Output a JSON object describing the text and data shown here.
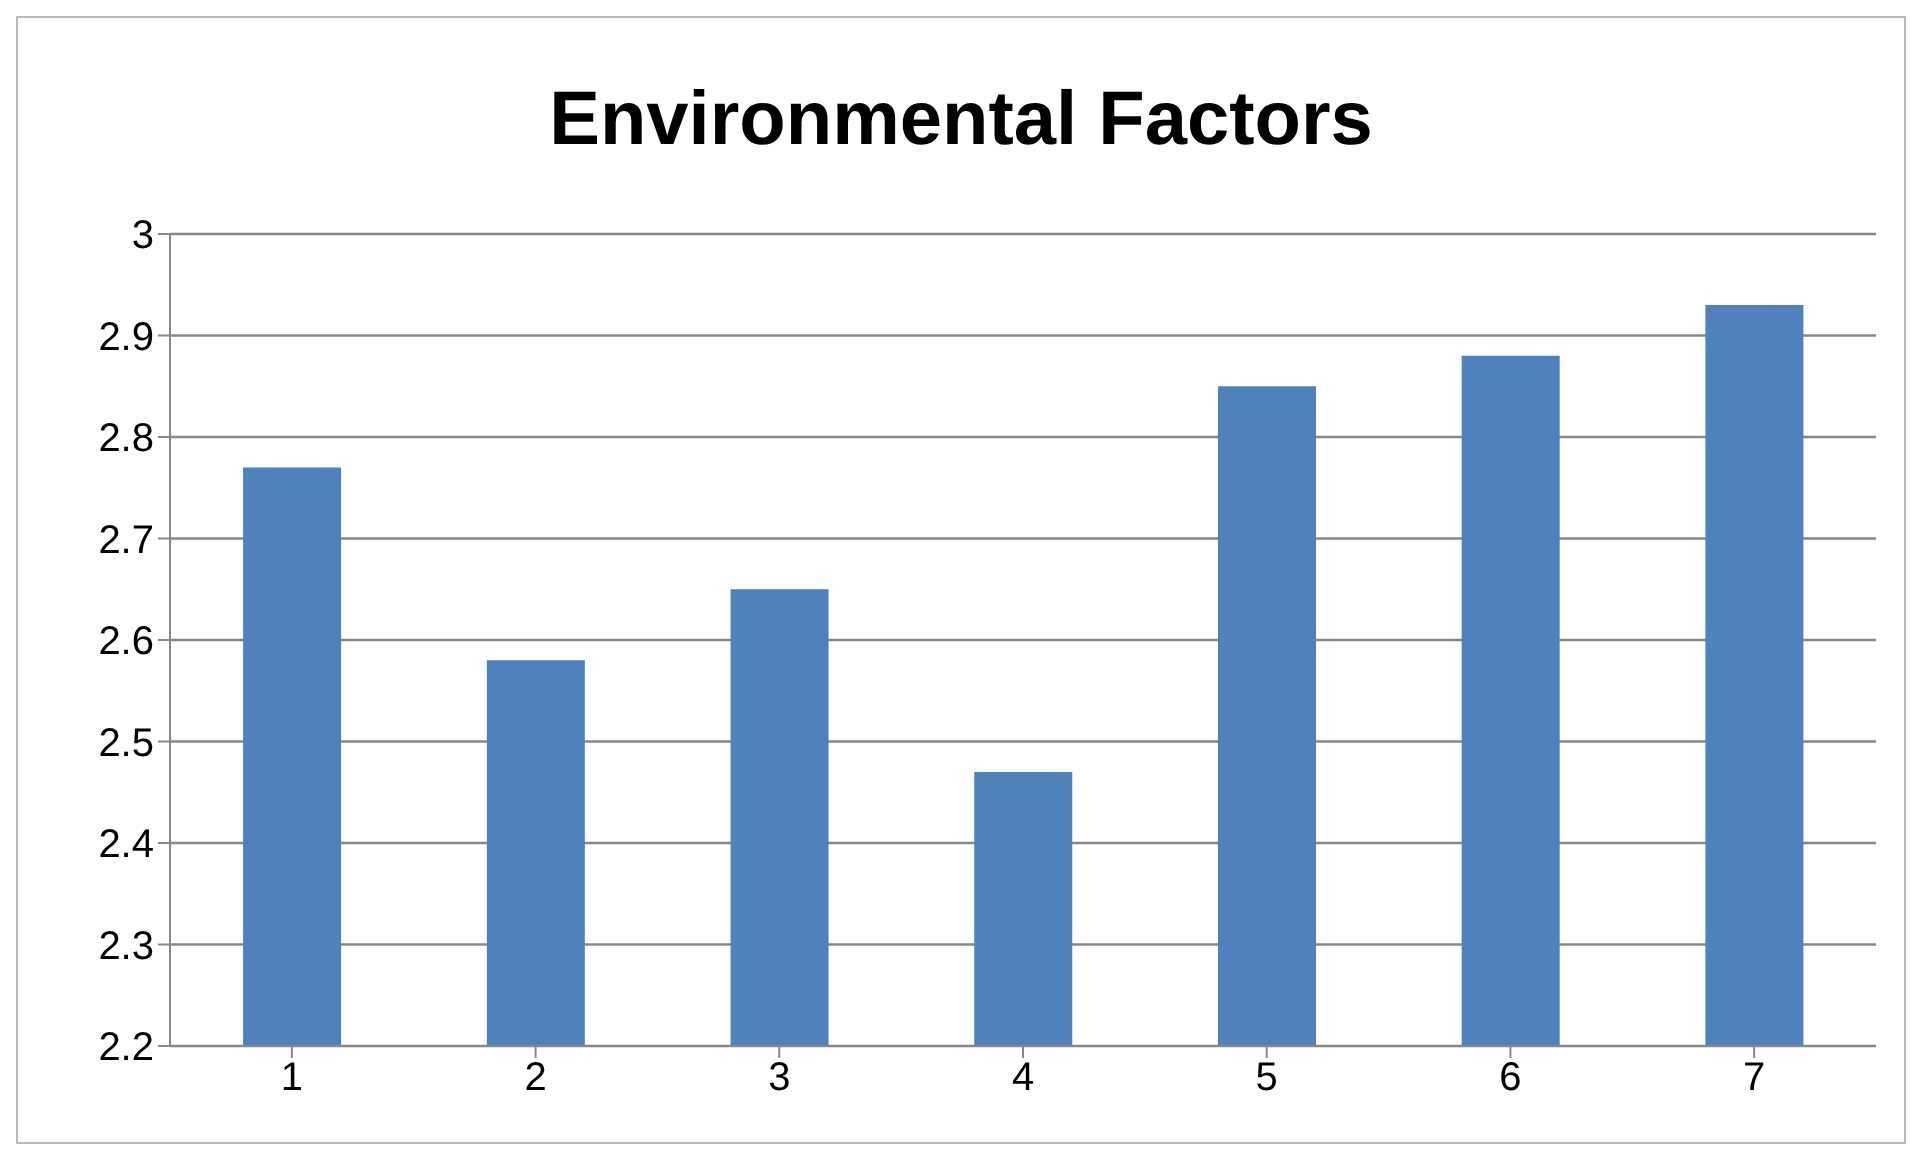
{
  "chart_data": {
    "type": "bar",
    "title": "Environmental Factors",
    "categories": [
      "1",
      "2",
      "3",
      "4",
      "5",
      "6",
      "7"
    ],
    "values": [
      2.77,
      2.58,
      2.65,
      2.47,
      2.85,
      2.88,
      2.93
    ],
    "color": "#4f81bd",
    "ylim": [
      2.2,
      3
    ],
    "yticks": [
      2.2,
      2.3,
      2.4,
      2.5,
      2.6,
      2.7,
      2.8,
      2.9,
      3
    ],
    "grid": "y",
    "legend": false
  }
}
